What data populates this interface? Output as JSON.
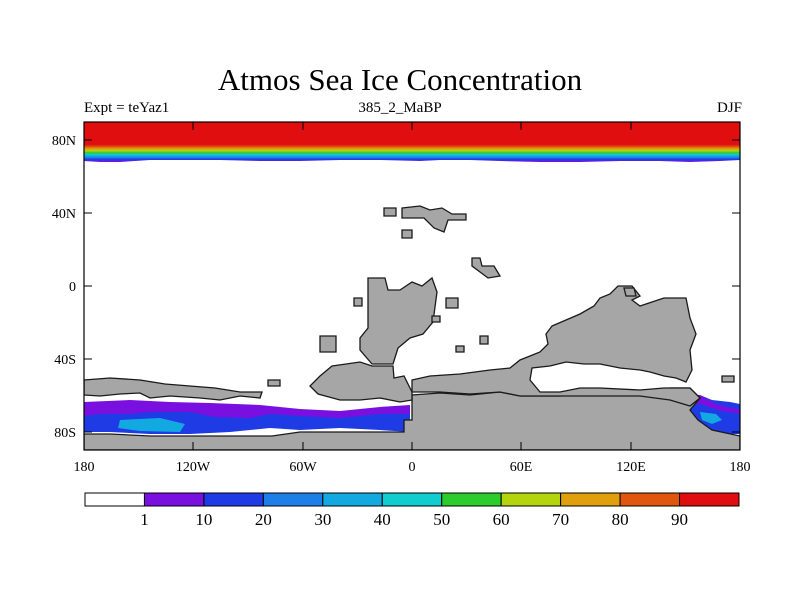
{
  "title": "Atmos Sea Ice Concentration",
  "subtitle_left": "Expt = teYaz1",
  "subtitle_center": "385_2_MaBP",
  "subtitle_right": "DJF",
  "land_color": "#a6a6a6",
  "x_ticks": [
    "180",
    "120W",
    "60W",
    "0",
    "60E",
    "120E",
    "180"
  ],
  "y_ticks": [
    "80N",
    "40N",
    "0",
    "40S",
    "80S"
  ],
  "colorbar": {
    "colors": [
      "#ffffff",
      "#7a10e0",
      "#1f3be6",
      "#1c7fe8",
      "#12a9e0",
      "#12cdd0",
      "#2bcc2b",
      "#b4d40e",
      "#e0a00e",
      "#e0560e",
      "#e00e0e"
    ],
    "labels": [
      "1",
      "10",
      "20",
      "30",
      "40",
      "50",
      "60",
      "70",
      "80",
      "90"
    ]
  }
}
